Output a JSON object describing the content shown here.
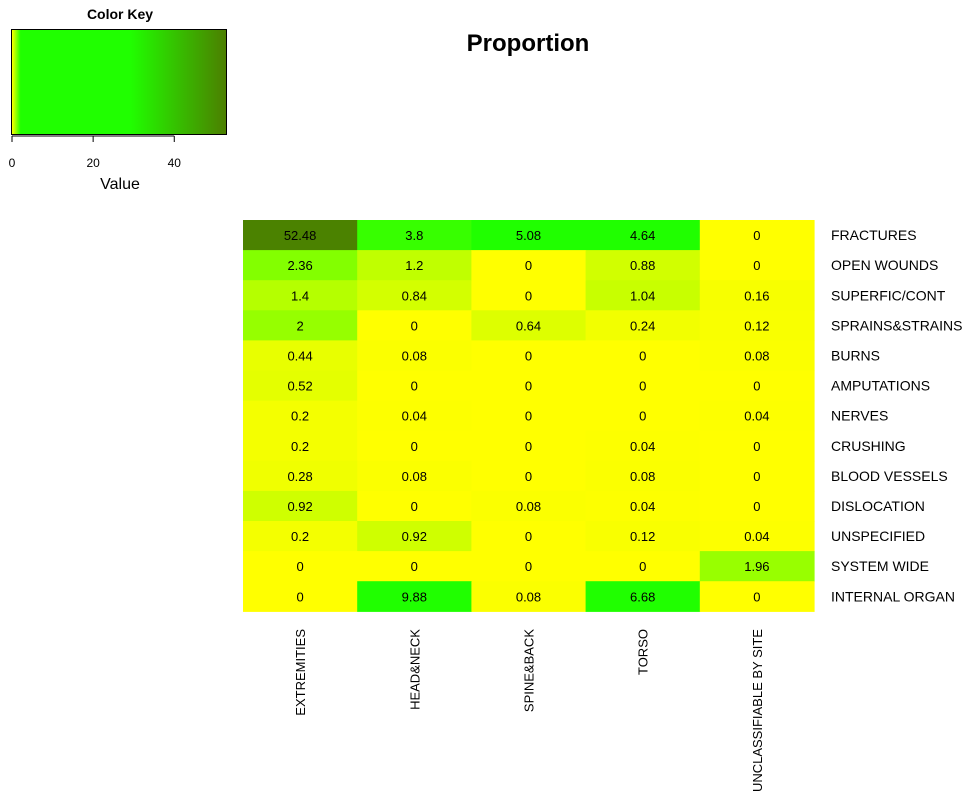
{
  "title": "Proportion",
  "color_key": {
    "title": "Color Key",
    "axis_label": "Value",
    "ticks": [
      0,
      20,
      40
    ],
    "range": [
      0,
      53
    ],
    "colors": [
      "#FFFF00",
      "#20FF00",
      "#4C7F00"
    ]
  },
  "chart_data": {
    "type": "heatmap",
    "title": "Proportion",
    "columns": [
      "EXTREMITIES",
      "HEAD&NECK",
      "SPINE&BACK",
      "TORSO",
      "UNCLASSIFIABLE BY SITE"
    ],
    "rows": [
      "FRACTURES",
      "OPEN WOUNDS",
      "SUPERFIC/CONT",
      "SPRAINS&STRAINS",
      "BURNS",
      "AMPUTATIONS",
      "NERVES",
      "CRUSHING",
      "BLOOD VESSELS",
      "DISLOCATION",
      "UNSPECIFIED",
      "SYSTEM WIDE",
      "INTERNAL ORGAN"
    ],
    "values": [
      [
        "52.48",
        "3.8",
        "5.08",
        "4.64",
        "0"
      ],
      [
        "2.36",
        "1.2",
        "0",
        "0.88",
        "0"
      ],
      [
        "1.4",
        "0.84",
        "0",
        "1.04",
        "0.16"
      ],
      [
        "2",
        "0",
        "0.64",
        "0.24",
        "0.12"
      ],
      [
        "0.44",
        "0.08",
        "0",
        "0",
        "0.08"
      ],
      [
        "0.52",
        "0",
        "0",
        "0",
        "0"
      ],
      [
        "0.2",
        "0.04",
        "0",
        "0",
        "0.04"
      ],
      [
        "0.2",
        "0",
        "0",
        "0.04",
        "0"
      ],
      [
        "0.28",
        "0.08",
        "0",
        "0.08",
        "0"
      ],
      [
        "0.92",
        "0",
        "0.08",
        "0.04",
        "0"
      ],
      [
        "0.2",
        "0.92",
        "0",
        "0.12",
        "0.04"
      ],
      [
        "0",
        "0",
        "0",
        "0",
        "1.96"
      ],
      [
        "0",
        "9.88",
        "0.08",
        "6.68",
        "0"
      ]
    ]
  }
}
